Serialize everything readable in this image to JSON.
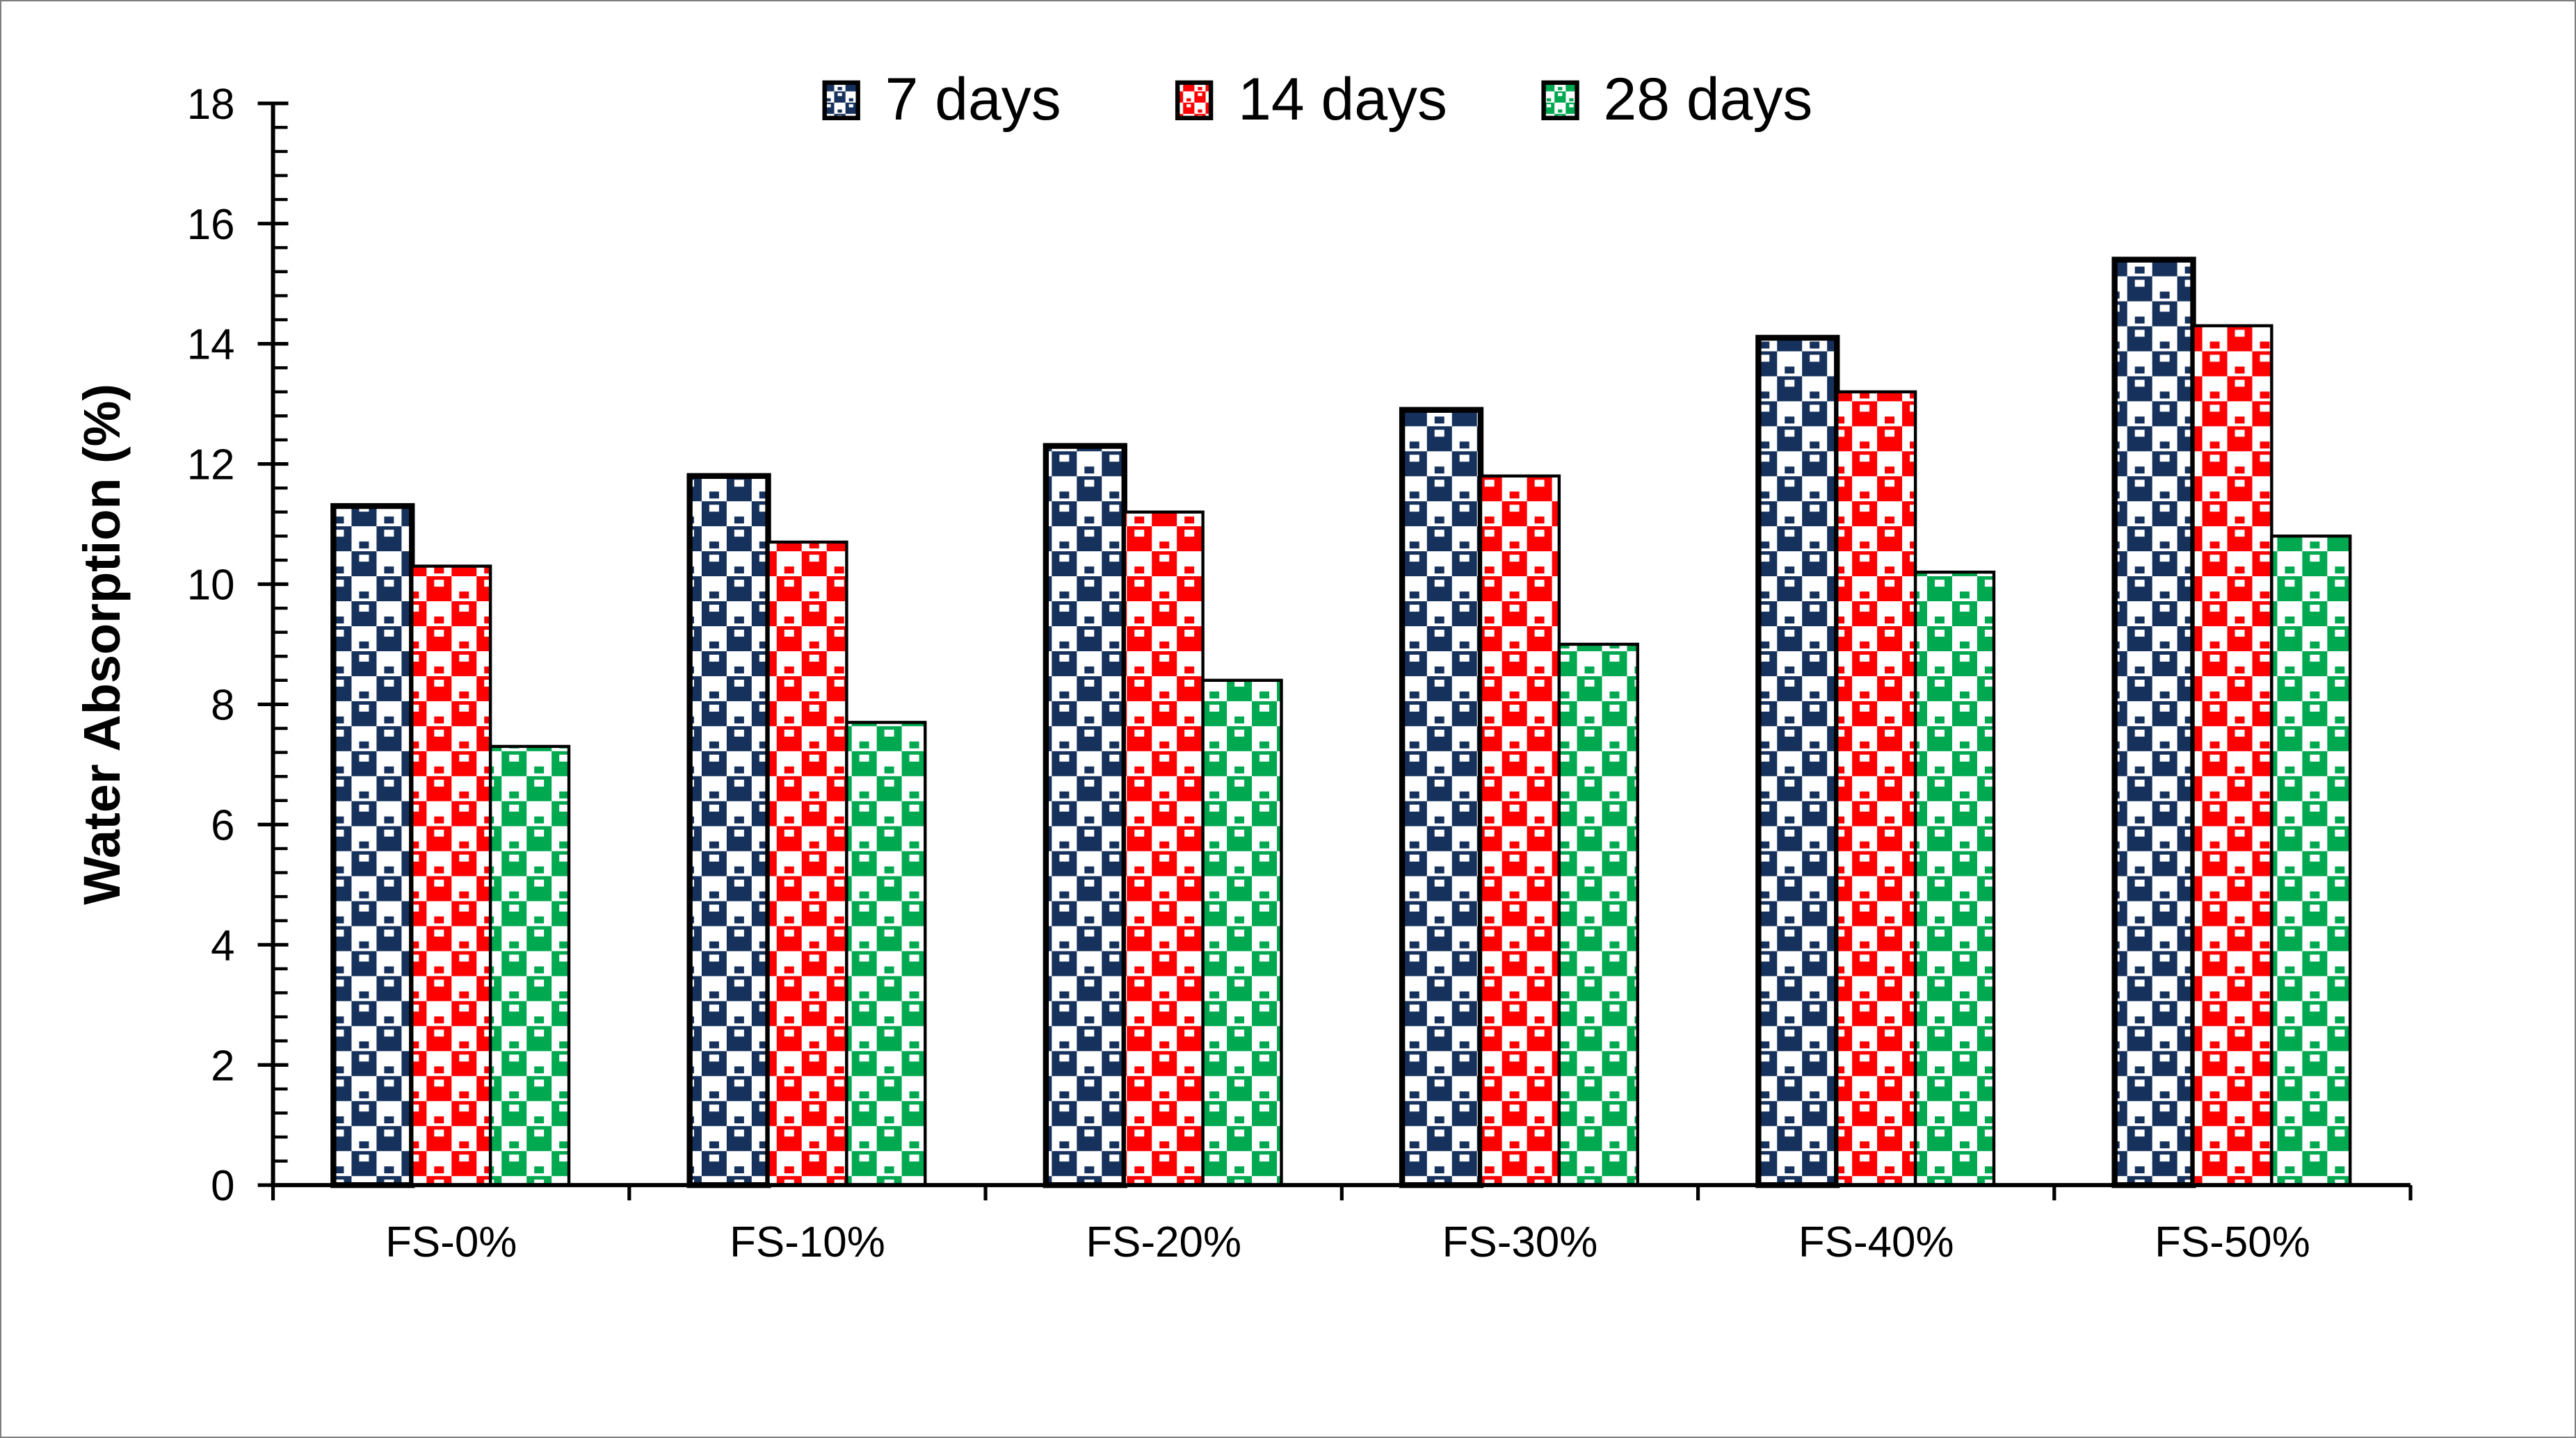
{
  "chart_data": {
    "type": "bar",
    "title": "",
    "ylabel": "Water Absorption (%)",
    "categories": [
      "FS-0%",
      "FS-10%",
      "FS-20%",
      "FS-30%",
      "FS-40%",
      "FS-50%"
    ],
    "series": [
      {
        "name": "7 days",
        "color": "#16325C",
        "values": [
          11.3,
          11.8,
          12.3,
          12.9,
          14.1,
          15.4
        ]
      },
      {
        "name": "14 days",
        "color": "#FF0000",
        "values": [
          10.3,
          10.7,
          11.2,
          11.8,
          13.2,
          14.3
        ]
      },
      {
        "name": "28 days",
        "color": "#00A850",
        "values": [
          7.3,
          7.7,
          8.4,
          9.0,
          10.2,
          10.8
        ]
      }
    ],
    "ylim": [
      0,
      18
    ],
    "ytick_step": 2,
    "yminor_step": 0.4,
    "ytick_labels": [
      "0",
      "2",
      "4",
      "6",
      "8",
      "10",
      "12",
      "14",
      "16",
      "18"
    ],
    "grid": false,
    "legend_position": "top-center",
    "bar_pattern": "checkerboard-divot",
    "axis_color": "#000000",
    "frame_color": "#7F7F7F",
    "background": "#FFFFFF"
  }
}
